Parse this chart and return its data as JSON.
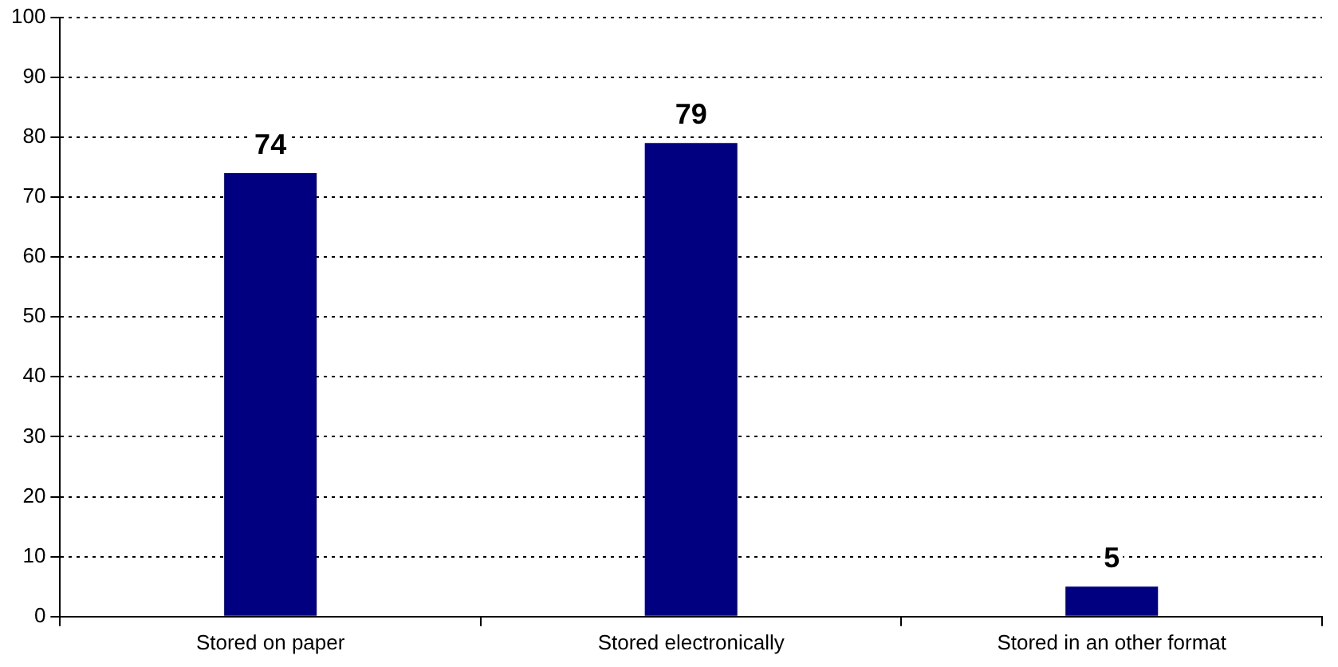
{
  "chart_data": {
    "type": "bar",
    "categories": [
      "Stored on paper",
      "Stored electronically",
      "Stored in an other format"
    ],
    "values": [
      74,
      79,
      5
    ],
    "color": "#000080",
    "ylim": [
      0,
      100
    ],
    "yticks": [
      0,
      10,
      20,
      30,
      40,
      50,
      60,
      70,
      80,
      90,
      100
    ],
    "grid": "y",
    "data_labels": true
  }
}
